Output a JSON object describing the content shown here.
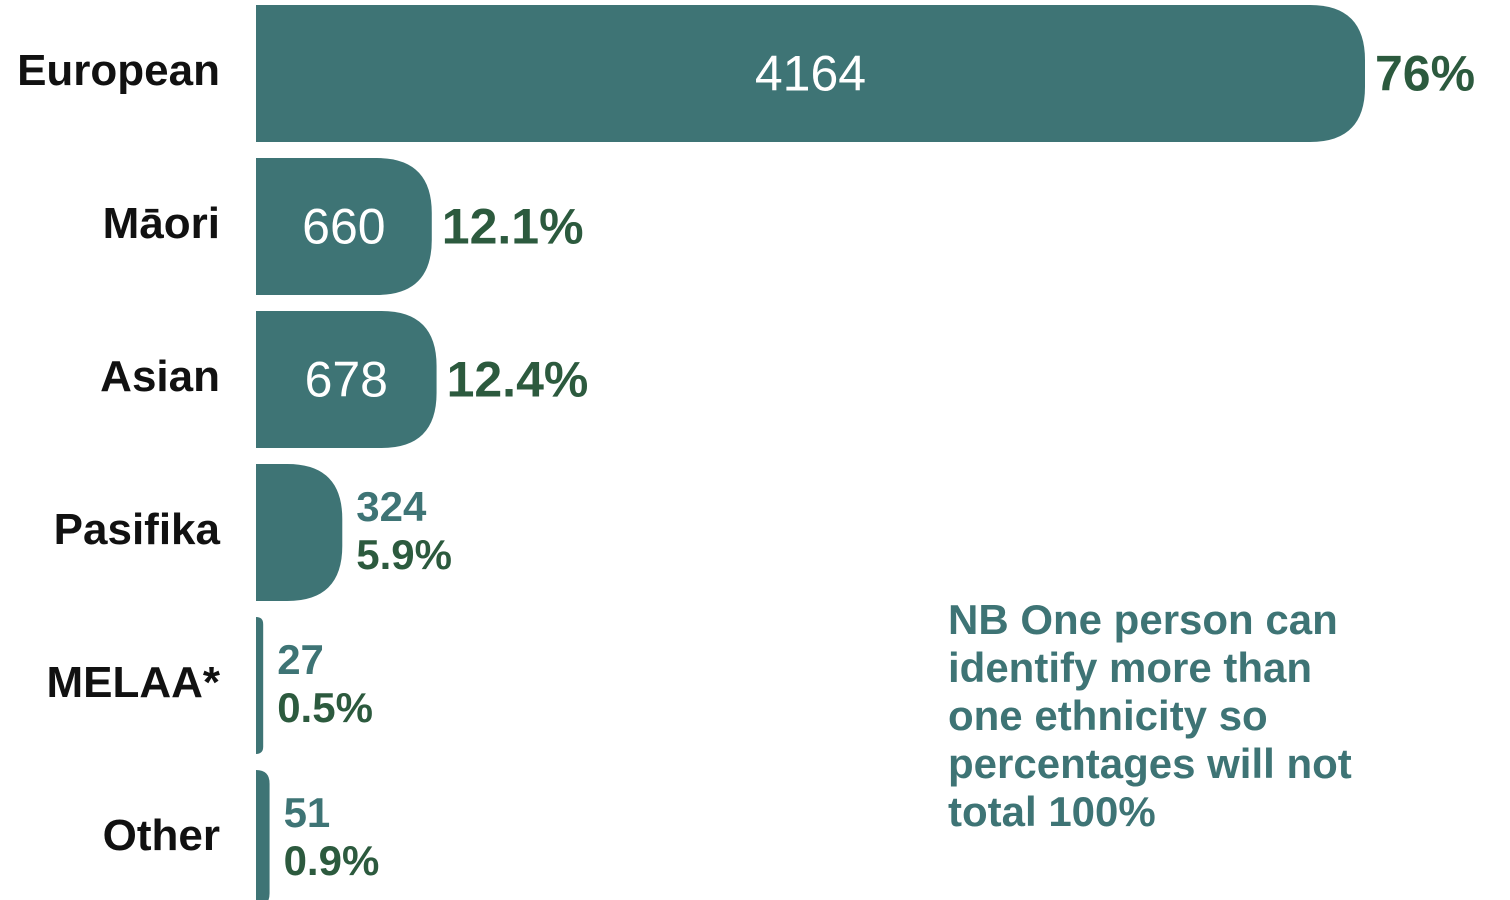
{
  "chart_data": {
    "type": "bar",
    "orientation": "horizontal",
    "categories": [
      "European",
      "Māori",
      "Asian",
      "Pasifika",
      "MELAA*",
      "Other"
    ],
    "values": [
      4164,
      660,
      678,
      324,
      27,
      51
    ],
    "percentages": [
      76,
      12.1,
      12.4,
      5.9,
      0.5,
      0.9
    ],
    "percentage_labels": [
      "76%",
      "12.1%",
      "12.4%",
      "5.9%",
      "0.5%",
      "0.9%"
    ],
    "color": "#3e7475",
    "annotation": [
      "NB One person can",
      "identify more than",
      "one ethnicity so",
      "percentages will not",
      "total 100%"
    ]
  }
}
